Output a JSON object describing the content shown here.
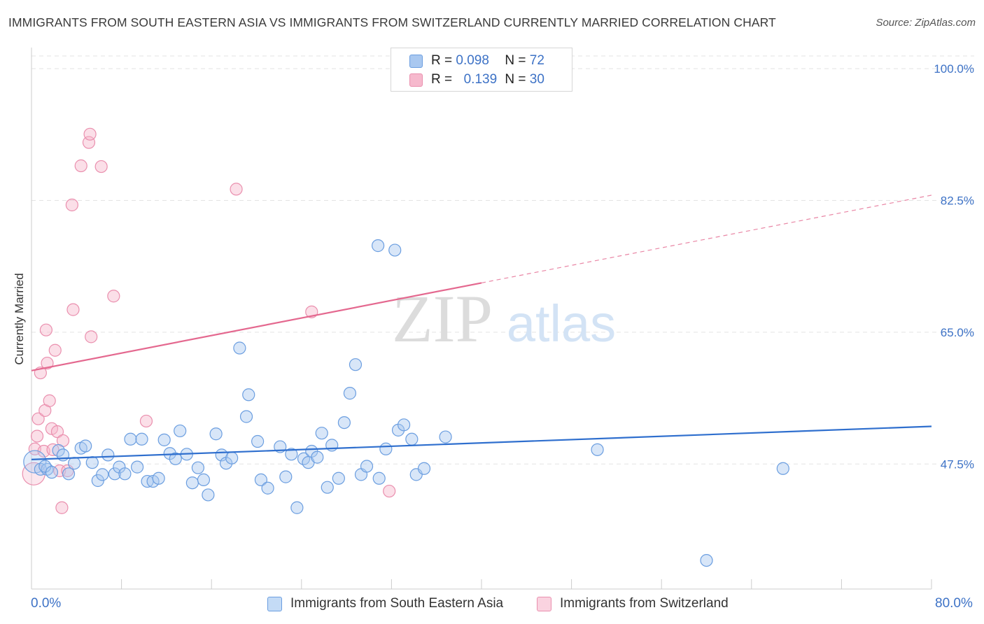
{
  "header": {
    "title": "IMMIGRANTS FROM SOUTH EASTERN ASIA VS IMMIGRANTS FROM SWITZERLAND CURRENTLY MARRIED CORRELATION CHART",
    "source": "Source: ZipAtlas.com"
  },
  "watermark": {
    "zip": "ZIP",
    "atlas": "atlas"
  },
  "legend": {
    "series1": {
      "r_label": "R =",
      "r_value": "0.098",
      "n_label": "N =",
      "n_value": "72"
    },
    "series2": {
      "r_label": "R =",
      "r_value": "0.139",
      "n_label": "N =",
      "n_value": "30"
    }
  },
  "bottom_legend": {
    "series1": "Immigrants from South Eastern Asia",
    "series2": "Immigrants from Switzerland"
  },
  "x_axis": {
    "min_label": "0.0%",
    "max_label": "80.0%"
  },
  "colors": {
    "blue_fill": "#a9c8f0",
    "blue_stroke": "#6b9ee0",
    "blue_line": "#2f6fce",
    "pink_fill": "#f6b9cd",
    "pink_stroke": "#ea8fae",
    "pink_line": "#e4688f",
    "tick_text": "#3d72c6",
    "grid": "#e3e3e3"
  },
  "chart_data": {
    "type": "scatter",
    "title": "IMMIGRANTS FROM SOUTH EASTERN ASIA VS IMMIGRANTS FROM SWITZERLAND CURRENTLY MARRIED CORRELATION CHART",
    "xlabel": "",
    "ylabel": "Currently Married",
    "xlim": [
      0,
      80
    ],
    "ylim": [
      30.9,
      102.8
    ],
    "y_ticks": [
      47.5,
      65.0,
      82.5,
      100.0
    ],
    "y_tick_labels": [
      "47.5%",
      "65.0%",
      "82.5%",
      "100.0%"
    ],
    "x_tick_values": [
      0,
      8,
      16,
      24,
      32,
      40,
      48,
      56,
      64,
      72,
      80
    ],
    "legend_position": "top-center",
    "series": [
      {
        "name": "Immigrants from South Eastern Asia",
        "color": "blue",
        "R": 0.098,
        "N": 72,
        "trend": {
          "x": [
            0,
            80
          ],
          "y": [
            48.1,
            52.5
          ],
          "dashed_from": null
        },
        "points": [
          {
            "x": 0.3,
            "y": 47.8,
            "big": true
          },
          {
            "x": 0.8,
            "y": 46.8
          },
          {
            "x": 1.4,
            "y": 46.8
          },
          {
            "x": 1.2,
            "y": 47.2
          },
          {
            "x": 1.8,
            "y": 46.4
          },
          {
            "x": 2.4,
            "y": 49.3
          },
          {
            "x": 2.8,
            "y": 48.7
          },
          {
            "x": 3.3,
            "y": 46.2
          },
          {
            "x": 3.8,
            "y": 47.6
          },
          {
            "x": 4.4,
            "y": 49.6
          },
          {
            "x": 4.8,
            "y": 49.9
          },
          {
            "x": 5.4,
            "y": 47.7
          },
          {
            "x": 5.9,
            "y": 45.3
          },
          {
            "x": 6.3,
            "y": 46.1
          },
          {
            "x": 6.8,
            "y": 48.7
          },
          {
            "x": 7.4,
            "y": 46.2
          },
          {
            "x": 7.8,
            "y": 47.1
          },
          {
            "x": 8.3,
            "y": 46.2
          },
          {
            "x": 8.8,
            "y": 50.8
          },
          {
            "x": 9.4,
            "y": 47.1
          },
          {
            "x": 9.8,
            "y": 50.8
          },
          {
            "x": 10.3,
            "y": 45.2
          },
          {
            "x": 10.8,
            "y": 45.2
          },
          {
            "x": 11.3,
            "y": 45.6
          },
          {
            "x": 11.8,
            "y": 50.7
          },
          {
            "x": 12.3,
            "y": 48.9
          },
          {
            "x": 12.8,
            "y": 48.2
          },
          {
            "x": 13.2,
            "y": 51.9
          },
          {
            "x": 13.8,
            "y": 48.8
          },
          {
            "x": 14.3,
            "y": 45.0
          },
          {
            "x": 14.8,
            "y": 47.0
          },
          {
            "x": 15.3,
            "y": 45.4
          },
          {
            "x": 15.7,
            "y": 43.4
          },
          {
            "x": 16.4,
            "y": 51.5
          },
          {
            "x": 16.9,
            "y": 48.7
          },
          {
            "x": 17.3,
            "y": 47.6
          },
          {
            "x": 17.8,
            "y": 48.3
          },
          {
            "x": 18.5,
            "y": 62.9
          },
          {
            "x": 19.1,
            "y": 53.8
          },
          {
            "x": 19.3,
            "y": 56.7
          },
          {
            "x": 20.1,
            "y": 50.5
          },
          {
            "x": 20.4,
            "y": 45.4
          },
          {
            "x": 21.0,
            "y": 44.3
          },
          {
            "x": 22.1,
            "y": 49.8
          },
          {
            "x": 22.6,
            "y": 45.8
          },
          {
            "x": 23.1,
            "y": 48.8
          },
          {
            "x": 23.6,
            "y": 41.7
          },
          {
            "x": 24.2,
            "y": 48.2
          },
          {
            "x": 24.6,
            "y": 47.7
          },
          {
            "x": 24.9,
            "y": 49.2
          },
          {
            "x": 25.4,
            "y": 48.4
          },
          {
            "x": 25.8,
            "y": 51.6
          },
          {
            "x": 26.3,
            "y": 44.4
          },
          {
            "x": 26.7,
            "y": 50.0
          },
          {
            "x": 27.3,
            "y": 45.6
          },
          {
            "x": 27.8,
            "y": 53.0
          },
          {
            "x": 28.3,
            "y": 56.9
          },
          {
            "x": 28.8,
            "y": 60.7
          },
          {
            "x": 29.3,
            "y": 46.1
          },
          {
            "x": 29.8,
            "y": 47.2
          },
          {
            "x": 30.8,
            "y": 76.5
          },
          {
            "x": 30.9,
            "y": 45.6
          },
          {
            "x": 31.5,
            "y": 49.5
          },
          {
            "x": 32.3,
            "y": 75.9
          },
          {
            "x": 32.6,
            "y": 52.0
          },
          {
            "x": 33.1,
            "y": 52.7
          },
          {
            "x": 33.8,
            "y": 50.8
          },
          {
            "x": 34.2,
            "y": 46.1
          },
          {
            "x": 34.9,
            "y": 46.9
          },
          {
            "x": 36.8,
            "y": 51.1
          },
          {
            "x": 50.3,
            "y": 49.4
          },
          {
            "x": 66.8,
            "y": 46.9
          },
          {
            "x": 60.0,
            "y": 34.7
          }
        ]
      },
      {
        "name": "Immigrants from Switzerland",
        "color": "pink",
        "R": 0.139,
        "N": 30,
        "trend": {
          "x": [
            0,
            80
          ],
          "y": [
            59.9,
            83.2
          ],
          "dashed_from": 40
        },
        "points": [
          {
            "x": 0.2,
            "y": 46.2,
            "big": true
          },
          {
            "x": 0.3,
            "y": 49.5
          },
          {
            "x": 0.5,
            "y": 51.2
          },
          {
            "x": 0.6,
            "y": 53.5
          },
          {
            "x": 0.8,
            "y": 59.6
          },
          {
            "x": 1.1,
            "y": 49.2
          },
          {
            "x": 1.2,
            "y": 54.6
          },
          {
            "x": 1.4,
            "y": 60.9
          },
          {
            "x": 1.3,
            "y": 65.3
          },
          {
            "x": 1.6,
            "y": 55.9
          },
          {
            "x": 1.8,
            "y": 52.2
          },
          {
            "x": 1.9,
            "y": 49.4
          },
          {
            "x": 2.1,
            "y": 62.6
          },
          {
            "x": 2.3,
            "y": 51.8
          },
          {
            "x": 2.5,
            "y": 46.6
          },
          {
            "x": 2.7,
            "y": 41.7
          },
          {
            "x": 2.8,
            "y": 50.6
          },
          {
            "x": 3.2,
            "y": 46.6
          },
          {
            "x": 3.6,
            "y": 81.9
          },
          {
            "x": 3.7,
            "y": 68.0
          },
          {
            "x": 4.4,
            "y": 87.1
          },
          {
            "x": 5.1,
            "y": 90.2
          },
          {
            "x": 5.2,
            "y": 91.3
          },
          {
            "x": 5.3,
            "y": 64.4
          },
          {
            "x": 6.2,
            "y": 87.0
          },
          {
            "x": 7.3,
            "y": 69.8
          },
          {
            "x": 10.2,
            "y": 53.2
          },
          {
            "x": 18.2,
            "y": 84.0
          },
          {
            "x": 24.9,
            "y": 67.7
          },
          {
            "x": 31.8,
            "y": 43.9
          }
        ]
      }
    ]
  }
}
